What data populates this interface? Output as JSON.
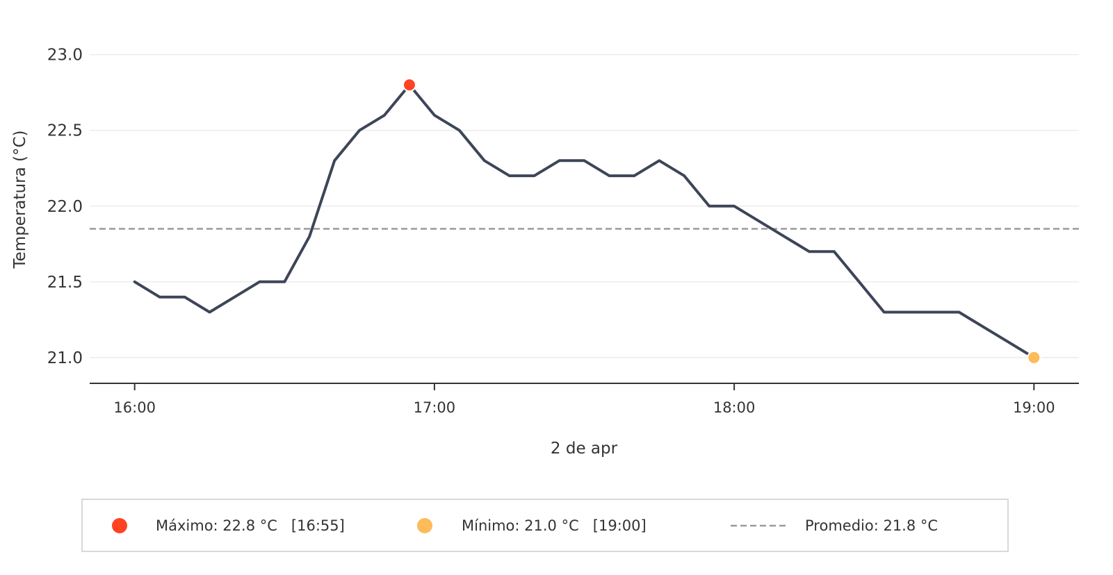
{
  "chart_data": {
    "type": "line",
    "title": "",
    "xlabel": "2 de apr",
    "ylabel": "Temperatura (°C)",
    "x_ticks": [
      "16:00",
      "17:00",
      "18:00",
      "19:00"
    ],
    "y_ticks": [
      "21.0",
      "21.5",
      "22.0",
      "22.5",
      "23.0"
    ],
    "ylim": [
      20.83,
      23.2
    ],
    "xlim": [
      "15:51",
      "19:09"
    ],
    "grid": "horizontal",
    "series": [
      {
        "x": [
          "16:00",
          "16:05",
          "16:10",
          "16:15",
          "16:20",
          "16:25",
          "16:30",
          "16:35",
          "16:40",
          "16:45",
          "16:50",
          "16:55",
          "17:00",
          "17:05",
          "17:10",
          "17:15",
          "17:20",
          "17:25",
          "17:30",
          "17:35",
          "17:40",
          "17:45",
          "17:50",
          "17:55",
          "18:00",
          "18:05",
          "18:10",
          "18:15",
          "18:20",
          "18:25",
          "18:30",
          "18:35",
          "18:40",
          "18:45",
          "18:50",
          "18:55",
          "19:00"
        ],
        "values": [
          21.5,
          21.4,
          21.4,
          21.3,
          21.4,
          21.5,
          21.5,
          21.8,
          22.3,
          22.5,
          22.6,
          22.8,
          22.6,
          22.5,
          22.3,
          22.2,
          22.2,
          22.3,
          22.3,
          22.2,
          22.2,
          22.3,
          22.2,
          22.0,
          22.0,
          21.9,
          21.8,
          21.7,
          21.7,
          21.5,
          21.3,
          21.3,
          21.3,
          21.3,
          21.2,
          21.1,
          21.0
        ]
      }
    ],
    "average_value": 21.85,
    "max_point": {
      "x": "16:55",
      "value": 22.8
    },
    "min_point": {
      "x": "19:00",
      "value": 21.0
    },
    "legend": {
      "placement": "bottom",
      "max_label": "Máximo: 22.8 °C   [16:55]",
      "min_label": "Mínimo: 21.0 °C   [19:00]",
      "avg_label": "Promedio: 21.8 °C"
    },
    "colors": {
      "line": "#3d4558",
      "max": "#ff4322",
      "min": "#fdbb5a",
      "average": "#9a9a9a",
      "grid": "#ececec",
      "axis": "#333333"
    }
  }
}
